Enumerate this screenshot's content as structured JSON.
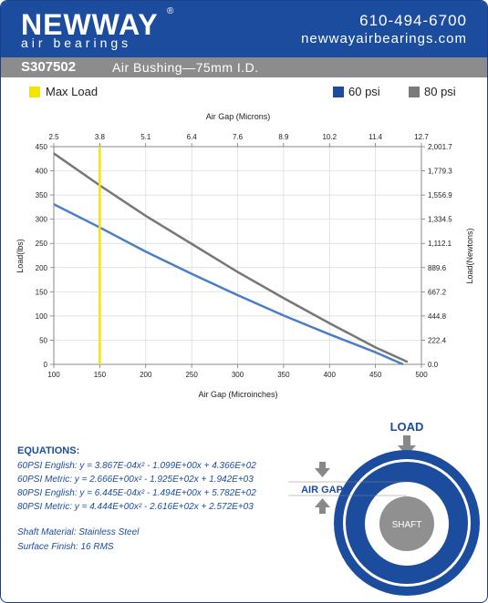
{
  "header": {
    "logo": "NEWWAY",
    "logo_mark": "®",
    "logo_sub": "air bearings",
    "phone": "610-494-6700",
    "website": "newwayairbearings.com"
  },
  "title_bar": {
    "part_number": "S307502",
    "description": "Air Bushing—75mm I.D."
  },
  "legend": {
    "max_load_label": "Max Load",
    "series_60_label": "60 psi",
    "series_80_label": "80 psi",
    "colors": {
      "max_load": "#f2e600",
      "60psi": "#1c4c9e",
      "80psi": "#7a7a7a"
    }
  },
  "chart_data": {
    "type": "line",
    "title": "",
    "xlabel": "Air Gap (Microinches)",
    "x2label": "Air Gap (Microns)",
    "ylabel": "Load(lbs)",
    "y2label": "Load(Newtons)",
    "xlim": [
      100,
      500
    ],
    "ylim": [
      0,
      450
    ],
    "x_ticks": [
      "100",
      "150",
      "200",
      "250",
      "300",
      "350",
      "400",
      "450",
      "500"
    ],
    "x2_ticks": [
      "2.5",
      "3.8",
      "5.1",
      "6.4",
      "7.6",
      "8.9",
      "10.2",
      "11.4",
      "12.7"
    ],
    "y_ticks": [
      "0",
      "50",
      "100",
      "150",
      "200",
      "250",
      "300",
      "350",
      "400",
      "450"
    ],
    "y2_ticks": [
      "0.0",
      "222.4",
      "444.8",
      "667.2",
      "889.6",
      "1,112.1",
      "1,334.5",
      "1,556.9",
      "1,779.3",
      "2,001.7"
    ],
    "grid": true,
    "max_load_x": 150,
    "series": [
      {
        "name": "60 psi",
        "color": "#4a7fc7",
        "x": [
          100,
          150,
          200,
          250,
          300,
          350,
          400,
          450,
          480
        ],
        "y": [
          331,
          283,
          233,
          187,
          143,
          101,
          62,
          25,
          0
        ]
      },
      {
        "name": "80 psi",
        "color": "#777777",
        "x": [
          100,
          150,
          200,
          250,
          300,
          350,
          400,
          450,
          485
        ],
        "y": [
          436,
          370,
          307,
          249,
          191,
          137,
          85,
          35,
          5
        ]
      }
    ]
  },
  "equations": {
    "title": "EQUATIONS:",
    "lines": [
      "60PSI English:  y = 3.867E-04x² - 1.099E+00x + 4.366E+02",
      "60PSI Metric:  y = 2.666E+00x² - 1.925E+02x + 1.942E+03",
      "80PSI English:  y = 6.445E-04x² - 1.494E+00x + 5.782E+02",
      "80PSI Metric:  y = 4.444E+00x² - 2.616E+02x + 2.572E+03"
    ]
  },
  "material": {
    "shaft": "Shaft Material:  Stainless Steel",
    "finish": "Surface Finish:  16 RMS"
  },
  "diagram": {
    "load_label": "LOAD",
    "air_gap_label": "AIR GAP",
    "shaft_label": "SHAFT"
  }
}
